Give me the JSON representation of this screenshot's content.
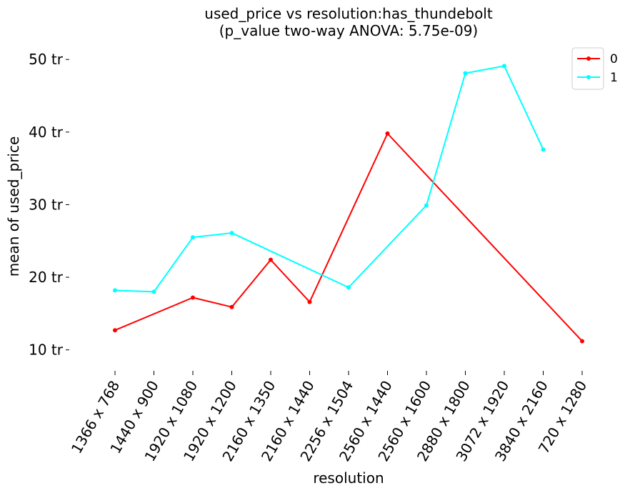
{
  "chart_data": {
    "type": "line",
    "title_line1": "used_price vs resolution:has_thundebolt",
    "title_line2": "(p_value two-way ANOVA: 5.75e-09)",
    "xlabel": "resolution",
    "ylabel": "mean of used_price",
    "categories": [
      "1366 x 768",
      "1440 x 900",
      "1920 x 1080",
      "1920 x 1200",
      "2160 x 1350",
      "2160 x 1440",
      "2256 x 1504",
      "2560 x 1440",
      "2560 x 1600",
      "2880 x 1800",
      "3072 x 1920",
      "3840 x 2160",
      "720 x 1280"
    ],
    "y_ticks": [
      {
        "value": 10000000,
        "label": "10 tr"
      },
      {
        "value": 20000000,
        "label": "20 tr"
      },
      {
        "value": 30000000,
        "label": "30 tr"
      },
      {
        "value": 40000000,
        "label": "40 tr"
      },
      {
        "value": 50000000,
        "label": "50 tr"
      }
    ],
    "ylim": [
      7800000,
      51500000
    ],
    "grid": false,
    "legend_position": "top-right",
    "series": [
      {
        "name": "0",
        "color": "#ff0000",
        "points": [
          {
            "x": "1366 x 768",
            "y": 12700000
          },
          {
            "x": "1920 x 1080",
            "y": 17200000
          },
          {
            "x": "1920 x 1200",
            "y": 15900000
          },
          {
            "x": "2160 x 1350",
            "y": 22400000
          },
          {
            "x": "2160 x 1440",
            "y": 16600000
          },
          {
            "x": "2560 x 1440",
            "y": 39800000
          },
          {
            "x": "720 x 1280",
            "y": 11200000
          }
        ]
      },
      {
        "name": "1",
        "color": "#00ffff",
        "points": [
          {
            "x": "1366 x 768",
            "y": 18200000
          },
          {
            "x": "1440 x 900",
            "y": 18000000
          },
          {
            "x": "1920 x 1080",
            "y": 25500000
          },
          {
            "x": "1920 x 1200",
            "y": 26100000
          },
          {
            "x": "2256 x 1504",
            "y": 18600000
          },
          {
            "x": "2560 x 1600",
            "y": 29900000
          },
          {
            "x": "2880 x 1800",
            "y": 48100000
          },
          {
            "x": "3072 x 1920",
            "y": 49100000
          },
          {
            "x": "3840 x 2160",
            "y": 37600000
          }
        ]
      }
    ]
  }
}
